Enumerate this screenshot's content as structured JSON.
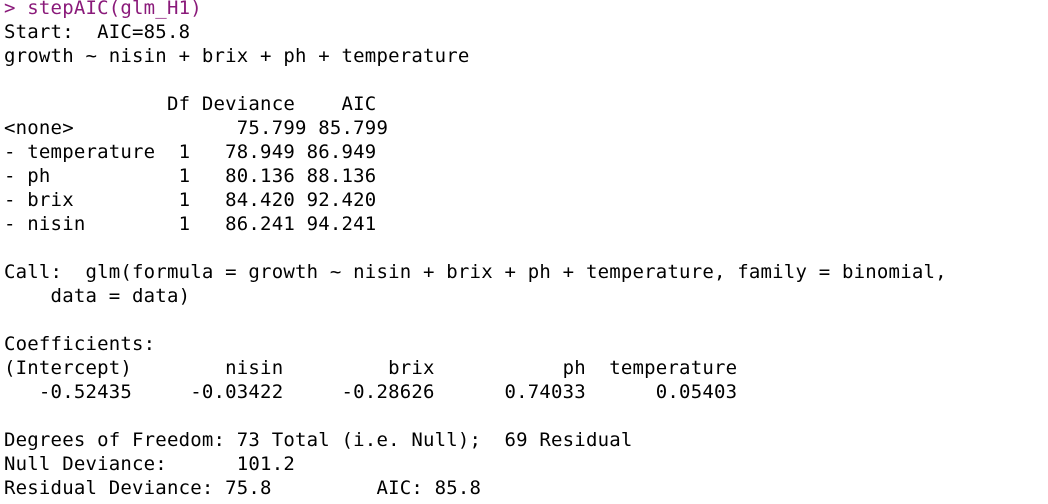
{
  "console": {
    "prompt": ">",
    "command": "stepAIC(glm_H1)",
    "colors": {
      "command": "#8a1a7a",
      "output": "#000000",
      "background": "#ffffff"
    },
    "output_lines": [
      "Start:  AIC=85.8",
      "growth ~ nisin + brix + ph + temperature",
      "",
      "              Df Deviance    AIC",
      "<none>              75.799 85.799",
      "- temperature  1   78.949 86.949",
      "- ph           1   80.136 88.136",
      "- brix         1   84.420 92.420",
      "- nisin        1   86.241 94.241",
      "",
      "Call:  glm(formula = growth ~ nisin + brix + ph + temperature, family = binomial,",
      "    data = data)",
      "",
      "Coefficients:",
      "(Intercept)        nisin         brix           ph  temperature",
      "   -0.52435     -0.03422     -0.28626      0.74033      0.05403",
      "",
      "Degrees of Freedom: 73 Total (i.e. Null);  69 Residual",
      "Null Deviance:      101.2",
      "Residual Deviance: 75.8         AIC: 85.8"
    ]
  }
}
